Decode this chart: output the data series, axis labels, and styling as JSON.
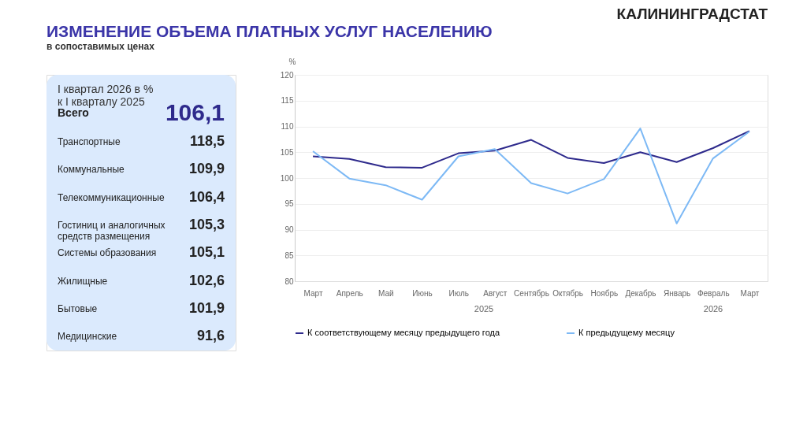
{
  "chart_data": [
    {
      "type": "other",
      "title": "ИЗМЕНЕНИЕ ОБЪЕМА ПЛАТНЫХ УСЛУГ НАСЕЛЕНИЮ",
      "subtitle": "в сопоставимых ценах",
      "annotations": [
        "I квартал 2026  в %\nк I кварталу 2025"
      ],
      "categories": [
        "Всего",
        "Транспортные",
        "Коммунальные",
        "Телекоммуникационные",
        "Гостиниц и аналогичных\nсредств размещения",
        "Системы образования",
        "Жилищные",
        "Бытовые",
        "Медицинские"
      ],
      "value_labels": [
        "106,1",
        "118,5",
        "109,9",
        "106,4",
        "105,3",
        "105,1",
        "102,6",
        "101,9",
        "91,6"
      ]
    },
    {
      "type": "line",
      "ylabel": "%",
      "categories": [
        "Март",
        "Апрель",
        "Май",
        "Июнь",
        "Июль",
        "Август",
        "Сентябрь",
        "Октябрь",
        "Ноябрь",
        "Декабрь",
        "Январь",
        "Февраль",
        "Март"
      ],
      "series": [
        {
          "name": "К соответствующему месяцу предыдущего года",
          "color": "#2e2a8c",
          "values": [
            104.2,
            103.7,
            102.1,
            102.0,
            104.8,
            105.3,
            107.4,
            103.9,
            102.9,
            105.0,
            103.1,
            105.8,
            109.1
          ]
        },
        {
          "name": "К предыдущему месяцу",
          "color": "#7db9f5",
          "values": [
            105.2,
            99.9,
            98.6,
            95.8,
            104.2,
            105.6,
            99.0,
            97.0,
            99.8,
            109.6,
            91.2,
            103.8,
            109.0
          ]
        }
      ],
      "ylim": [
        80,
        120
      ],
      "yticks": [
        80,
        85,
        90,
        95,
        100,
        105,
        110,
        115,
        120
      ],
      "grid": "y",
      "legend": "bottom",
      "marker": "none",
      "line_style": "solid",
      "annotations": [
        "КАЛИНИНГРАДСТАТ",
        "2025",
        "2026"
      ]
    }
  ]
}
